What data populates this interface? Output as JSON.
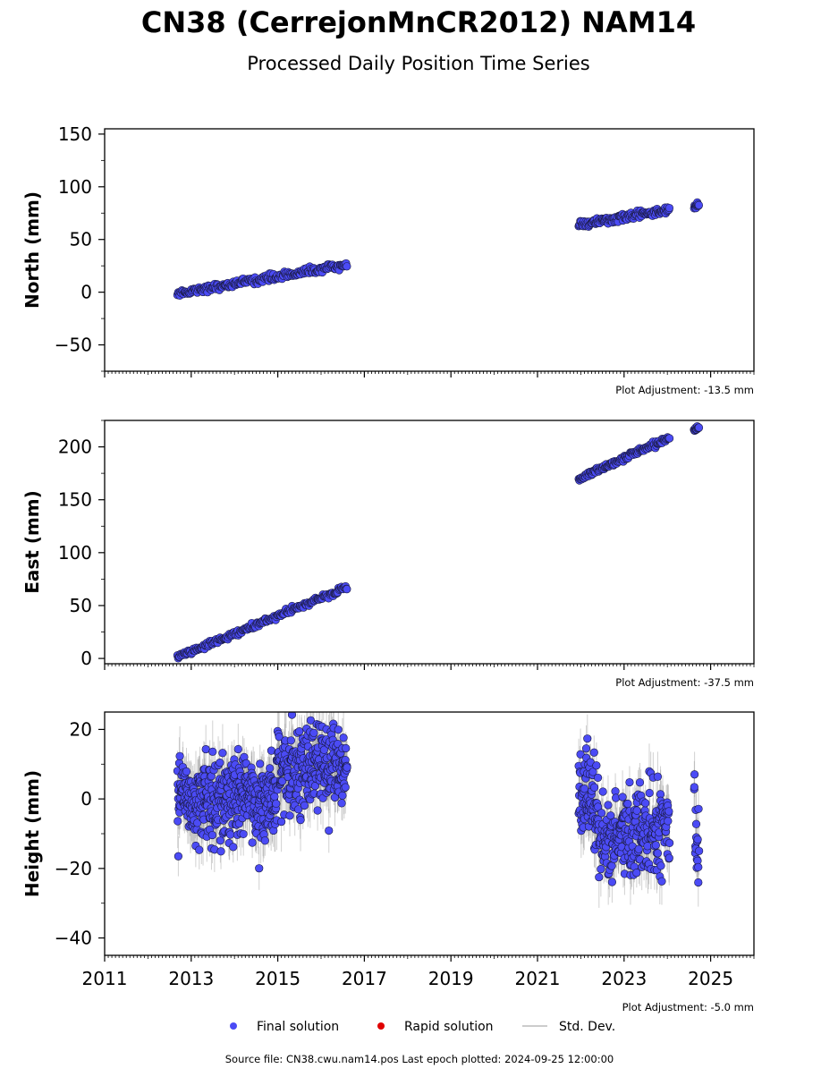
{
  "title": "CN38 (CerrejonMnCR2012) NAM14",
  "subtitle": "Processed Daily Position Time Series",
  "footer": "Source file: CN38.cwu.nam14.pos  Last epoch plotted: 2024-09-25 12:00:00",
  "legend": {
    "final": "Final solution",
    "rapid": "Rapid solution",
    "std": "Std. Dev."
  },
  "colors": {
    "final": "#4b4bf5",
    "rapid": "#e00000",
    "std": "#bbbbbb"
  },
  "chart_data": [
    {
      "type": "scatter",
      "ylabel": "North (mm)",
      "adjustment": "Plot Adjustment: -13.5 mm",
      "xlim": [
        2011,
        2026
      ],
      "ylim": [
        -75,
        155
      ],
      "xticks": [
        2011,
        2013,
        2015,
        2017,
        2019,
        2021,
        2023,
        2025
      ],
      "yticks": [
        -50,
        0,
        50,
        100,
        150
      ],
      "show_xticklabels": false,
      "segments": [
        {
          "x0": 2012.68,
          "x1": 2016.6,
          "y0": -1,
          "y1": 26,
          "noise": 1.6,
          "err": 1.4,
          "n": 220
        },
        {
          "x0": 2021.95,
          "x1": 2024.05,
          "y0": 64,
          "y1": 78,
          "noise": 1.6,
          "err": 1.5,
          "n": 140
        },
        {
          "x0": 2024.62,
          "x1": 2024.73,
          "y0": 81,
          "y1": 84,
          "noise": 1.5,
          "err": 1.5,
          "n": 12
        }
      ]
    },
    {
      "type": "scatter",
      "ylabel": "East (mm)",
      "adjustment": "Plot Adjustment: -37.5 mm",
      "xlim": [
        2011,
        2026
      ],
      "ylim": [
        -5,
        225
      ],
      "xticks": [
        2011,
        2013,
        2015,
        2017,
        2019,
        2021,
        2023,
        2025
      ],
      "yticks": [
        0,
        50,
        100,
        150,
        200
      ],
      "show_xticklabels": false,
      "segments": [
        {
          "x0": 2012.68,
          "x1": 2016.6,
          "y0": 1,
          "y1": 67,
          "noise": 1.4,
          "err": 1.4,
          "n": 220
        },
        {
          "x0": 2021.95,
          "x1": 2024.05,
          "y0": 170,
          "y1": 209,
          "noise": 1.4,
          "err": 1.5,
          "n": 140
        },
        {
          "x0": 2024.62,
          "x1": 2024.73,
          "y0": 216,
          "y1": 219,
          "noise": 1.2,
          "err": 1.5,
          "n": 12
        }
      ]
    },
    {
      "type": "scatter",
      "ylabel": "Height (mm)",
      "adjustment": "Plot Adjustment: -5.0 mm",
      "xlim": [
        2011,
        2026
      ],
      "ylim": [
        -45,
        25
      ],
      "xticks": [
        2011,
        2013,
        2015,
        2017,
        2019,
        2021,
        2023,
        2025
      ],
      "yticks": [
        -40,
        -20,
        0,
        20
      ],
      "show_xticklabels": true,
      "segments": [
        {
          "x0": 2012.68,
          "x1": 2015.0,
          "y0": 0,
          "y1": 0,
          "noise": 6,
          "err": 6,
          "n": 420
        },
        {
          "x0": 2015.0,
          "x1": 2016.6,
          "y0": 9,
          "y1": 10,
          "noise": 6,
          "err": 6,
          "n": 280
        },
        {
          "x0": 2021.95,
          "x1": 2022.4,
          "y0": 2,
          "y1": -6,
          "noise": 7,
          "err": 6,
          "n": 80
        },
        {
          "x0": 2022.4,
          "x1": 2024.05,
          "y0": -12,
          "y1": -8,
          "noise": 6,
          "err": 6,
          "n": 260
        },
        {
          "x0": 2024.62,
          "x1": 2024.73,
          "y0": -6,
          "y1": -16,
          "noise": 6,
          "err": 6,
          "n": 18
        }
      ]
    }
  ]
}
